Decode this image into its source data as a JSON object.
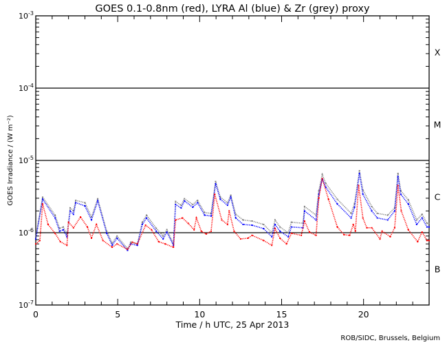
{
  "chart_data": {
    "type": "scatter",
    "title": "GOES 0.1-0.8nm (red), LYRA Al (blue) & Zr (grey) proxy",
    "xlabel": "Time / h UTC, 25 Apr 2013",
    "ylabel": "GOES Irradiance / (W m⁻²)",
    "xlim": [
      0,
      24
    ],
    "ylim": [
      1e-07,
      0.001
    ],
    "yscale": "log",
    "x_ticks": [
      "0",
      "5",
      "10",
      "15",
      "20"
    ],
    "x_tick_values": [
      0,
      5,
      10,
      15,
      20
    ],
    "y_ticks": [
      {
        "base": "10",
        "exp": "-7",
        "value": 1e-07
      },
      {
        "base": "10",
        "exp": "-6",
        "value": 1e-06
      },
      {
        "base": "10",
        "exp": "-5",
        "value": 1e-05
      },
      {
        "base": "10",
        "exp": "-4",
        "value": 0.0001
      },
      {
        "base": "10",
        "exp": "-3",
        "value": 0.001
      }
    ],
    "flare_classes": [
      {
        "label": "X",
        "value": 0.000316
      },
      {
        "label": "M",
        "value": 3.16e-05
      },
      {
        "label": "C",
        "value": 3.16e-06
      },
      {
        "label": "B",
        "value": 3.16e-07
      }
    ],
    "threshold_lines": [
      1e-06,
      1e-05,
      0.0001
    ],
    "credit": "ROB/SIDC, Brussels, Belgium",
    "colors": {
      "red": "#ff0000",
      "blue": "#0000ff",
      "grey": "#808080"
    },
    "series": [
      {
        "name": "Zr proxy (grey)",
        "color": "#808080",
        "x": [
          0,
          0.42,
          1.18,
          1.45,
          1.68,
          1.9,
          2.1,
          2.3,
          2.44,
          3.0,
          3.4,
          3.78,
          4.33,
          4.66,
          4.96,
          5.6,
          5.8,
          6.2,
          6.5,
          6.76,
          7.35,
          7.77,
          8.0,
          8.4,
          8.53,
          8.87,
          9.07,
          9.58,
          9.87,
          10.3,
          10.7,
          10.97,
          11.26,
          11.7,
          11.9,
          12.2,
          12.65,
          13.2,
          13.9,
          14.4,
          14.6,
          14.9,
          15.4,
          15.6,
          16.3,
          16.4,
          17.1,
          17.27,
          17.48,
          17.7,
          18.4,
          19.24,
          19.45,
          19.75,
          19.96,
          20.5,
          20.84,
          21.47,
          21.9,
          22.1,
          22.27,
          22.73,
          23.24,
          23.57,
          23.87,
          24
        ],
        "y": [
          9e-07,
          3.1e-06,
          1.75e-06,
          1.15e-06,
          1.2e-06,
          9.5e-07,
          2.2e-06,
          2e-06,
          2.8e-06,
          2.6e-06,
          1.65e-06,
          2.95e-06,
          1.05e-06,
          7.2e-07,
          9e-07,
          6e-07,
          7.4e-07,
          7e-07,
          1.4e-06,
          1.75e-06,
          1.15e-06,
          9e-07,
          1.1e-06,
          7e-07,
          2.7e-06,
          2.4e-06,
          2.95e-06,
          2.45e-06,
          2.8e-06,
          1.9e-06,
          1.85e-06,
          5.1e-06,
          3.1e-06,
          2.6e-06,
          3.3e-06,
          1.8e-06,
          1.5e-06,
          1.45e-06,
          1.3e-06,
          1e-06,
          1.5e-06,
          1.2e-06,
          1e-06,
          1.4e-06,
          1.35e-06,
          2.3e-06,
          1.75e-06,
          3.8e-06,
          6.4e-06,
          4.8e-06,
          2.9e-06,
          1.85e-06,
          2.55e-06,
          7.2e-06,
          3.9e-06,
          2.3e-06,
          1.85e-06,
          1.75e-06,
          2.2e-06,
          6.6e-06,
          3.8e-06,
          2.85e-06,
          1.5e-06,
          1.8e-06,
          1.35e-06,
          1.35e-06
        ]
      },
      {
        "name": "LYRA Al proxy (blue)",
        "color": "#0000ff",
        "x": [
          0,
          0.42,
          1.18,
          1.45,
          1.68,
          1.9,
          2.1,
          2.3,
          2.44,
          3.0,
          3.4,
          3.78,
          4.33,
          4.66,
          4.96,
          5.6,
          5.8,
          6.2,
          6.5,
          6.76,
          7.35,
          7.77,
          8.0,
          8.4,
          8.53,
          8.87,
          9.07,
          9.58,
          9.87,
          10.3,
          10.7,
          10.97,
          11.26,
          11.7,
          11.9,
          12.2,
          12.65,
          13.2,
          13.9,
          14.4,
          14.6,
          14.9,
          15.4,
          15.6,
          16.3,
          16.4,
          17.1,
          17.27,
          17.48,
          17.7,
          18.4,
          19.24,
          19.45,
          19.75,
          19.96,
          20.5,
          20.84,
          21.47,
          21.9,
          22.1,
          22.27,
          22.73,
          23.24,
          23.57,
          23.87,
          24
        ],
        "y": [
          8.2e-07,
          2.9e-06,
          1.6e-06,
          1.05e-06,
          1.1e-06,
          8.8e-07,
          2e-06,
          1.8e-06,
          2.6e-06,
          2.35e-06,
          1.5e-06,
          2.75e-06,
          9.8e-07,
          6.7e-07,
          8.4e-07,
          5.7e-07,
          7e-07,
          6.7e-07,
          1.3e-06,
          1.6e-06,
          1.05e-06,
          8.2e-07,
          1.02e-06,
          6.7e-07,
          2.45e-06,
          2.2e-06,
          2.75e-06,
          2.25e-06,
          2.6e-06,
          1.75e-06,
          1.7e-06,
          4.75e-06,
          2.9e-06,
          2.4e-06,
          3.1e-06,
          1.6e-06,
          1.3e-06,
          1.27e-06,
          1.14e-06,
          8.8e-07,
          1.3e-06,
          1.05e-06,
          8.8e-07,
          1.2e-06,
          1.17e-06,
          2e-06,
          1.5e-06,
          3.4e-06,
          5.6e-06,
          4.25e-06,
          2.5e-06,
          1.6e-06,
          2.25e-06,
          6.6e-06,
          3.4e-06,
          2e-06,
          1.6e-06,
          1.5e-06,
          2e-06,
          6e-06,
          3.4e-06,
          2.5e-06,
          1.3e-06,
          1.6e-06,
          1.2e-06,
          1.2e-06
        ]
      },
      {
        "name": "GOES 0.1-0.8nm (red)",
        "color": "#ff0000",
        "x": [
          0,
          0.25,
          0.42,
          0.75,
          1.18,
          1.5,
          1.9,
          2.0,
          2.3,
          2.73,
          3.15,
          3.4,
          3.7,
          4.1,
          4.66,
          4.96,
          5.6,
          5.9,
          6.2,
          6.7,
          7.06,
          7.5,
          7.9,
          8.4,
          8.53,
          8.95,
          9.3,
          9.66,
          9.8,
          10.1,
          10.4,
          10.7,
          10.92,
          11.35,
          11.7,
          11.8,
          12.1,
          12.5,
          12.95,
          13.2,
          13.9,
          14.4,
          14.6,
          14.9,
          15.3,
          15.6,
          16.2,
          16.4,
          16.7,
          17.1,
          17.27,
          17.48,
          17.86,
          18.4,
          18.8,
          19.15,
          19.37,
          19.5,
          19.7,
          19.96,
          20.2,
          20.5,
          21.0,
          21.13,
          21.63,
          21.9,
          22.1,
          22.3,
          22.73,
          23.3,
          23.57,
          23.87,
          24
        ],
        "y": [
          7e-07,
          7.8e-07,
          2.5e-06,
          1.3e-06,
          9.8e-07,
          7.5e-07,
          6.7e-07,
          1.4e-06,
          1.17e-06,
          1.65e-06,
          1.2e-06,
          8.4e-07,
          1.3e-06,
          7.8e-07,
          6.3e-07,
          7e-07,
          5.9e-07,
          7.4e-07,
          7e-07,
          1.27e-06,
          1.1e-06,
          7.5e-07,
          7e-07,
          6.3e-07,
          1.5e-06,
          1.6e-06,
          1.35e-06,
          1.1e-06,
          1.6e-06,
          1.05e-06,
          9.6e-07,
          1.05e-06,
          3.4e-06,
          1.5e-06,
          1.3e-06,
          2e-06,
          1.05e-06,
          8.2e-07,
          8.4e-07,
          9.2e-07,
          7.8e-07,
          6.7e-07,
          1.14e-06,
          8.4e-07,
          7e-07,
          9.8e-07,
          9.2e-07,
          1.45e-06,
          1.02e-06,
          9.2e-07,
          3e-06,
          5.6e-06,
          2.9e-06,
          1.2e-06,
          9.4e-07,
          9.2e-07,
          1.3e-06,
          1.05e-06,
          4.5e-06,
          1.6e-06,
          1.17e-06,
          1.17e-06,
          8.2e-07,
          1.05e-06,
          8.8e-07,
          1.17e-06,
          4.5e-06,
          2e-06,
          1.1e-06,
          7.5e-07,
          1.02e-06,
          7.8e-07,
          7.8e-07
        ]
      }
    ]
  }
}
